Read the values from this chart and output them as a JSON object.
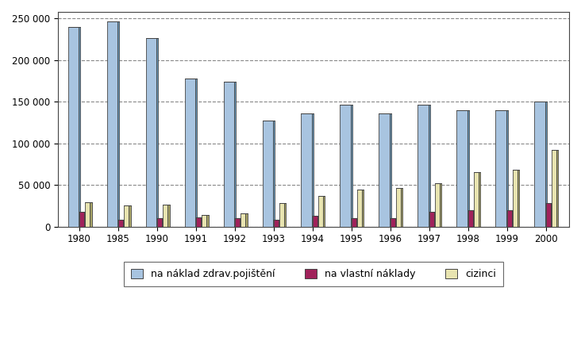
{
  "years": [
    "1980",
    "1985",
    "1990",
    "1991",
    "1992",
    "1993",
    "1994",
    "1995",
    "1996",
    "1997",
    "1998",
    "1999",
    "2000"
  ],
  "zdrav": [
    240000,
    247000,
    227000,
    178000,
    174000,
    127000,
    136000,
    146000,
    136000,
    146000,
    140000,
    140000,
    150000
  ],
  "vlastni": [
    18000,
    8000,
    10000,
    11000,
    10000,
    8000,
    13000,
    10000,
    10000,
    18000,
    20000,
    20000,
    28000
  ],
  "cizinci": [
    29000,
    25000,
    26000,
    14000,
    16000,
    28000,
    37000,
    44000,
    46000,
    52000,
    65000,
    68000,
    92000
  ],
  "color_zdrav_front": "#a8c4e0",
  "color_zdrav_side": "#6a9bbf",
  "color_zdrav_top": "#7aadd0",
  "color_vlastni_front": "#a0225a",
  "color_vlastni_side": "#6b0e3a",
  "color_vlastni_top": "#8a1a48",
  "color_cizinci_front": "#e8e4b0",
  "color_cizinci_side": "#a8a468",
  "color_cizinci_top": "#c8c488",
  "legend_zdrav": "na náklad zdrav.pojištění",
  "legend_vlastni": "na vlastní náklady",
  "legend_cizinci": "cizinci",
  "ylim": [
    0,
    250000
  ],
  "yticks": [
    0,
    50000,
    100000,
    150000,
    200000,
    250000
  ],
  "ytick_labels": [
    "0",
    "50 000",
    "100 000",
    "150 000",
    "200 000",
    "250 000"
  ],
  "background_color": "#ffffff",
  "bar_width": 0.18,
  "depth": 0.06,
  "group_width": 0.7
}
